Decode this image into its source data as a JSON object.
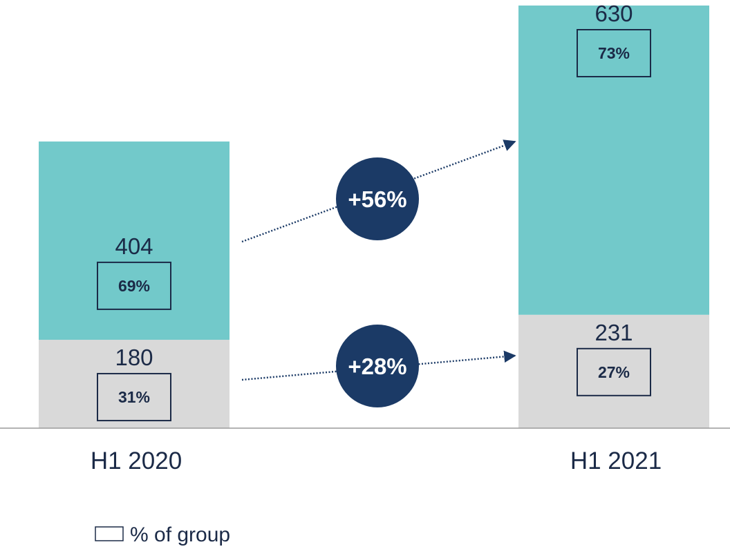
{
  "chart_data": {
    "type": "bar",
    "stacked": true,
    "categories": [
      "H1 2020",
      "H1 2021"
    ],
    "series": [
      {
        "values": [
          180,
          231
        ],
        "shares": [
          "31%",
          "27%"
        ],
        "color": "#d9d9d9"
      },
      {
        "values": [
          404,
          630
        ],
        "shares": [
          "69%",
          "73%"
        ],
        "color": "#72c9ca"
      }
    ],
    "growth": [
      "+28%",
      "+56%"
    ],
    "legend": {
      "label": "% of group",
      "placement": "bottom-left"
    },
    "ylim": [
      0,
      861
    ]
  },
  "colors": {
    "text": "#1b2a47",
    "share_box": "#1b2a47",
    "growth_circle": "#1b3a66",
    "growth_text": "#ffffff",
    "axis": "#9a9a9a"
  }
}
